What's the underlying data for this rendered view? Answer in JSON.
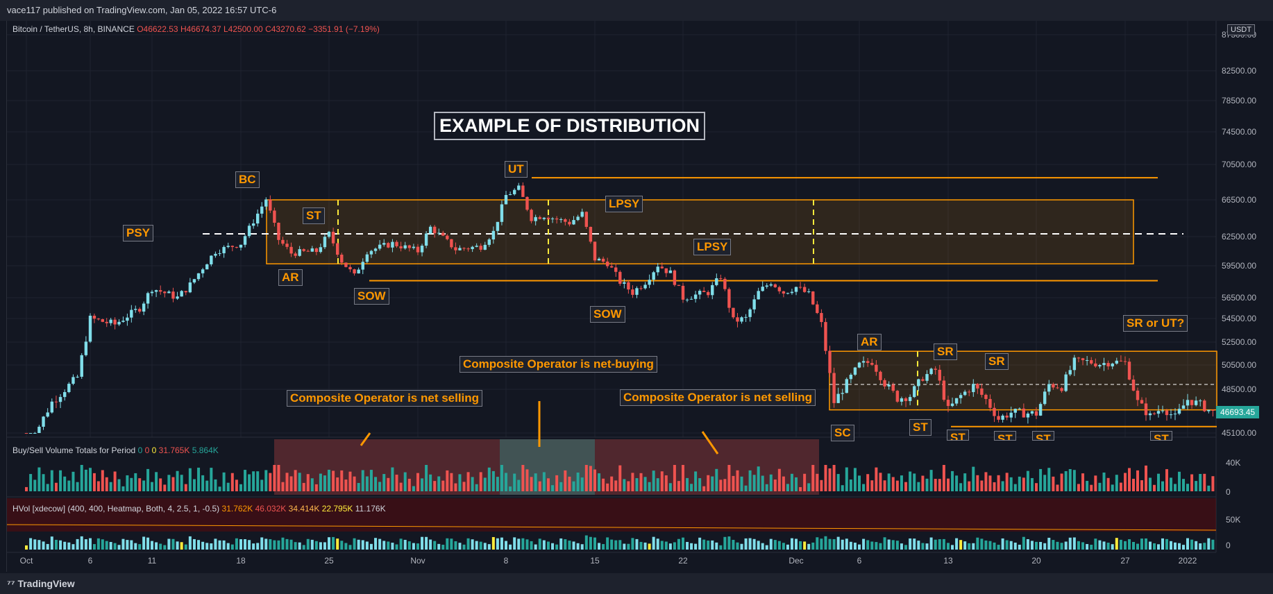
{
  "publish_line": "vace117 published on TradingView.com, Jan 05, 2022 16:57 UTC-6",
  "footer_logo": "TradingView",
  "symbol_header": {
    "name": "Bitcoin / TetherUS, 8h, BINANCE",
    "open": "O46622.53",
    "high": "H46674.37",
    "low": "L42500.00",
    "close": "C43270.62",
    "change": "−3351.91 (−7.19%)"
  },
  "currency": "USDT",
  "last_price": "46693.45",
  "title": "EXAMPLE OF DISTRIBUTION",
  "indicator1": {
    "name": "Buy/Sell Volume Totals for Period",
    "values": [
      "0",
      "0",
      "0",
      "31.765K",
      "5.864K"
    ],
    "ticks": [
      "40K",
      "0"
    ]
  },
  "indicator2": {
    "name": "HVol [xdecow] (400, 400, Heatmap, Both, 4, 2.5, 1, -0.5)",
    "values": [
      "31.762K",
      "46.032K",
      "34.414K",
      "22.795K",
      "11.176K"
    ],
    "ticks": [
      "50K",
      "0"
    ]
  },
  "colors": {
    "up": "#80deea",
    "down": "#ef5350",
    "accent": "#ff9800",
    "bg": "#131722"
  },
  "annotations": {
    "psy": "PSY",
    "bc": "BC",
    "st1": "ST",
    "ar1": "AR",
    "sow1": "SOW",
    "ut": "UT",
    "lpsy1": "LPSY",
    "lpsy2": "LPSY",
    "sow2": "SOW",
    "ar2": "AR",
    "sr1": "SR",
    "sr2": "SR",
    "sr_ut": "SR or UT?",
    "sc": "SC",
    "st2": "ST",
    "st3": "ST",
    "st4": "ST",
    "st5": "ST",
    "st6": "ST",
    "co_sell1": "Composite Operator is net selling",
    "co_buy": "Composite Operator is net-buying",
    "co_sell2": "Composite Operator is net selling"
  },
  "chart_data": {
    "type": "candlestick",
    "interval": "8h",
    "y_ticks": [
      45100,
      48500,
      50500,
      52500,
      54500,
      56500,
      59500,
      62500,
      66500,
      70500,
      74500,
      78500,
      82500,
      87500
    ],
    "y_tick_labels": [
      "45100.00",
      "48500.00",
      "50500.00",
      "52500.00",
      "54500.00",
      "56500.00",
      "59500.00",
      "62500.00",
      "66500.00",
      "70500.00",
      "74500.00",
      "78500.00",
      "82500.00",
      "87500.00"
    ],
    "x_tick_labels": [
      "Oct",
      "6",
      "11",
      "18",
      "25",
      "Nov",
      "8",
      "15",
      "22",
      "Dec",
      "6",
      "13",
      "20",
      "27",
      "2022"
    ],
    "close_path": [
      [
        "Oct 1",
        43800
      ],
      [
        "Oct 3",
        47500
      ],
      [
        "Oct 5",
        49500
      ],
      [
        "Oct 6",
        54500
      ],
      [
        "Oct 8",
        54000
      ],
      [
        "Oct 10",
        55500
      ],
      [
        "Oct 11",
        57400
      ],
      [
        "Oct 13",
        56500
      ],
      [
        "Oct 14",
        57700
      ],
      [
        "Oct 16",
        61000
      ],
      [
        "Oct 18",
        61800
      ],
      [
        "Oct 19",
        64200
      ],
      [
        "Oct 20",
        66600
      ],
      [
        "Oct 21",
        62200
      ],
      [
        "Oct 22",
        60800
      ],
      [
        "Oct 24",
        61000
      ],
      [
        "Oct 25",
        62800
      ],
      [
        "Oct 26",
        60000
      ],
      [
        "Oct 27",
        58500
      ],
      [
        "Oct 28",
        61000
      ],
      [
        "Oct 30",
        61800
      ],
      [
        "Nov 1",
        61000
      ],
      [
        "Nov 2",
        63500
      ],
      [
        "Nov 4",
        61200
      ],
      [
        "Nov 6",
        61500
      ],
      [
        "Nov 7",
        63000
      ],
      [
        "Nov 8",
        67000
      ],
      [
        "Nov 9",
        67800
      ],
      [
        "Nov 10",
        64500
      ],
      [
        "Nov 11",
        64800
      ],
      [
        "Nov 13",
        64000
      ],
      [
        "Nov 14",
        65000
      ],
      [
        "Nov 15",
        60200
      ],
      [
        "Nov 16",
        59800
      ],
      [
        "Nov 17",
        58000
      ],
      [
        "Nov 18",
        57000
      ],
      [
        "Nov 19",
        58000
      ],
      [
        "Nov 20",
        59600
      ],
      [
        "Nov 21",
        58800
      ],
      [
        "Nov 22",
        56500
      ],
      [
        "Nov 24",
        57000
      ],
      [
        "Nov 25",
        58500
      ],
      [
        "Nov 26",
        54300
      ],
      [
        "Nov 27",
        54500
      ],
      [
        "Nov 28",
        57000
      ],
      [
        "Nov 29",
        58000
      ],
      [
        "Nov 30",
        57000
      ],
      [
        "Dec 1",
        57500
      ],
      [
        "Dec 2",
        56800
      ],
      [
        "Dec 3",
        54000
      ],
      [
        "Dec 4",
        47500
      ],
      [
        "Dec 5",
        49000
      ],
      [
        "Dec 6",
        50500
      ],
      [
        "Dec 7",
        50800
      ],
      [
        "Dec 8",
        49000
      ],
      [
        "Dec 9",
        47800
      ],
      [
        "Dec 10",
        48000
      ],
      [
        "Dec 11",
        49500
      ],
      [
        "Dec 12",
        50100
      ],
      [
        "Dec 13",
        46900
      ],
      [
        "Dec 14",
        48000
      ],
      [
        "Dec 15",
        48800
      ],
      [
        "Dec 16",
        47700
      ],
      [
        "Dec 17",
        46200
      ],
      [
        "Dec 18",
        46700
      ],
      [
        "Dec 20",
        46600
      ],
      [
        "Dec 21",
        48900
      ],
      [
        "Dec 22",
        48700
      ],
      [
        "Dec 23",
        50800
      ],
      [
        "Dec 24",
        50800
      ],
      [
        "Dec 25",
        50600
      ],
      [
        "Dec 26",
        50800
      ],
      [
        "Dec 27",
        50700
      ],
      [
        "Dec 28",
        47500
      ],
      [
        "Dec 29",
        46400
      ],
      [
        "Dec 30",
        47100
      ],
      [
        "Dec 31",
        46300
      ],
      [
        "Jan 1",
        47700
      ],
      [
        "Jan 2",
        47300
      ],
      [
        "Jan 3",
        46693.45
      ]
    ],
    "levels": [
      {
        "name": "UT high",
        "value": 69000
      },
      {
        "name": "range top",
        "value": 66500
      },
      {
        "name": "mid",
        "value": 62800
      },
      {
        "name": "range bottom",
        "value": 59700
      },
      {
        "name": "SOW line",
        "value": 58100
      },
      {
        "name": "range2 top",
        "value": 51700
      },
      {
        "name": "range2 mid",
        "value": 48900
      },
      {
        "name": "range2 bottom",
        "value": 46900
      }
    ]
  }
}
